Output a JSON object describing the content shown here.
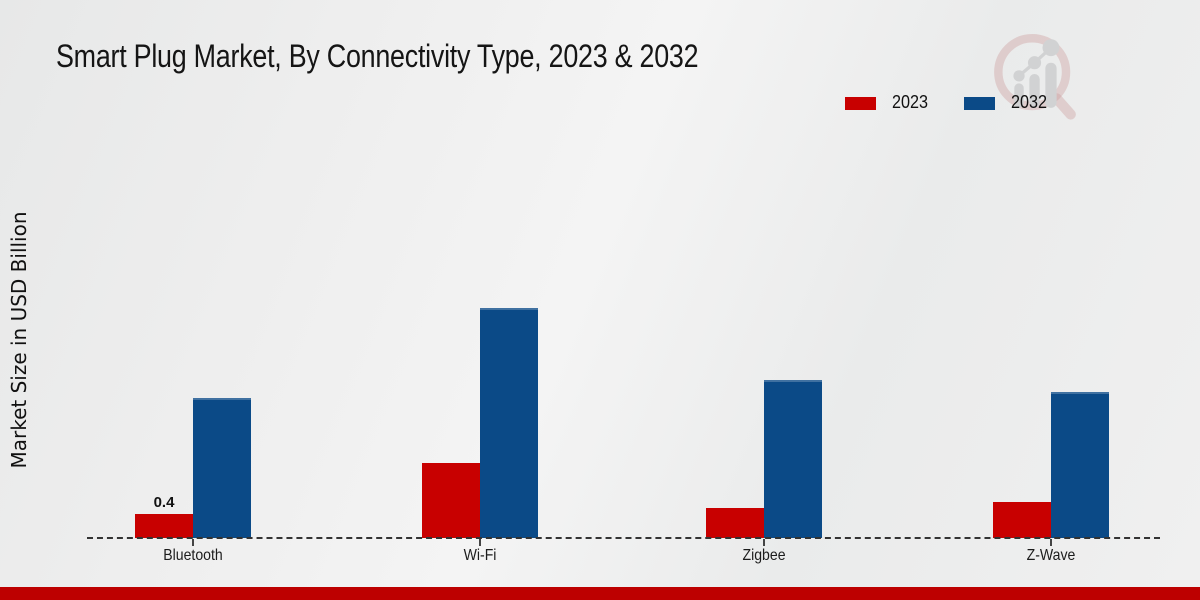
{
  "title": "Smart Plug Market, By Connectivity Type, 2023 & 2032",
  "y_axis_label": "Market Size in USD Billion",
  "watermark_icon": "magnifier-bar-chart-logo",
  "footer_bar_color": "#bd0000",
  "chart_data": {
    "type": "bar",
    "title": "Smart Plug Market, By Connectivity Type, 2023 & 2032",
    "ylabel": "Market Size in USD Billion",
    "xlabel": "",
    "units": "USD Billion",
    "categories": [
      "Bluetooth",
      "Wi-Fi",
      "Zigbee",
      "Z-Wave"
    ],
    "series": [
      {
        "name": "2023",
        "color": "#c80000",
        "values": [
          0.4,
          1.25,
          0.5,
          0.6
        ],
        "labels": [
          "0.4",
          "",
          "",
          ""
        ]
      },
      {
        "name": "2032",
        "color": "#0b4a87",
        "values": [
          2.3,
          3.8,
          2.6,
          2.4
        ],
        "labels": [
          "",
          "",
          "",
          ""
        ]
      }
    ],
    "ylim": [
      0,
      4
    ],
    "grid": false,
    "y_axis_ticks_visible": false,
    "baseline_style": "dashed",
    "legend_position": "top-right"
  }
}
